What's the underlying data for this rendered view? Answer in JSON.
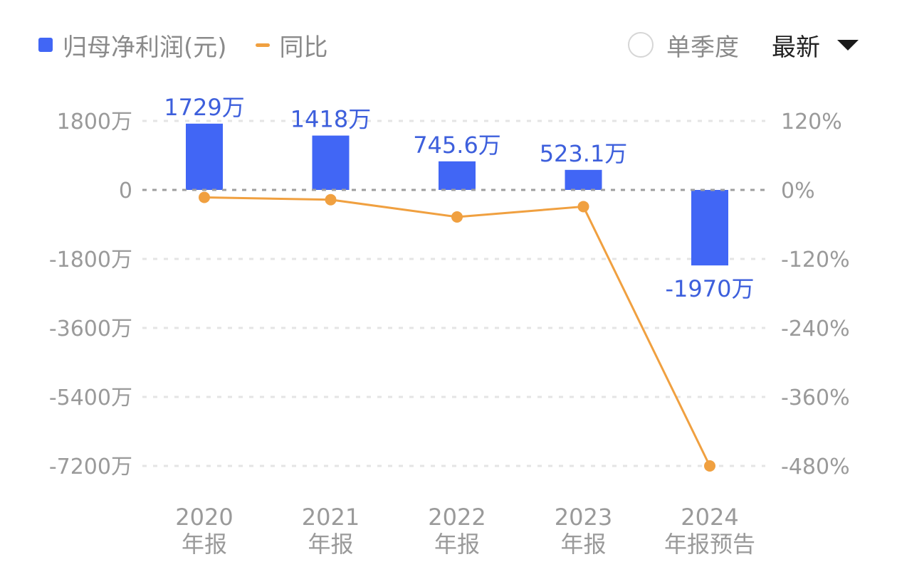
{
  "legend": {
    "bar_label": "归母净利润(元)",
    "line_label": "同比"
  },
  "controls": {
    "quarter_label": "单季度",
    "dropdown_label": "最新"
  },
  "colors": {
    "bar": "#4166f5",
    "line": "#f0a040",
    "label": "#3d5fdc",
    "axis_text": "#9a9a9a",
    "grid": "#e4e4e4",
    "zero_line": "#9e9e9e"
  },
  "chart_data": {
    "type": "bar",
    "categories": [
      [
        "2020",
        "年报"
      ],
      [
        "2021",
        "年报"
      ],
      [
        "2022",
        "年报"
      ],
      [
        "2023",
        "年报"
      ],
      [
        "2024",
        "年报预告"
      ]
    ],
    "series": [
      {
        "name": "归母净利润(元)",
        "type": "bar",
        "axis": "left",
        "values": [
          1729,
          1418,
          745.6,
          523.1,
          -1970
        ],
        "unit": "万",
        "labels": [
          "1729万",
          "1418万",
          "745.6万",
          "523.1万",
          "-1970万"
        ]
      },
      {
        "name": "同比",
        "type": "line",
        "axis": "right",
        "values": [
          -13,
          -17,
          -47,
          -29,
          -480
        ],
        "unit": "%"
      }
    ],
    "left_axis": {
      "ticks": [
        1800,
        0,
        -1800,
        -3600,
        -5400,
        -7200
      ],
      "tick_labels": [
        "1800万",
        "0",
        "-1800万",
        "-3600万",
        "-5400万",
        "-7200万"
      ],
      "range": [
        -7200,
        1800
      ]
    },
    "right_axis": {
      "ticks": [
        120,
        0,
        -120,
        -240,
        -360,
        -480
      ],
      "tick_labels": [
        "120%",
        "0%",
        "-120%",
        "-240%",
        "-360%",
        "-480%"
      ],
      "range": [
        -480,
        120
      ]
    },
    "grid": true,
    "legend_position": "top-left"
  }
}
